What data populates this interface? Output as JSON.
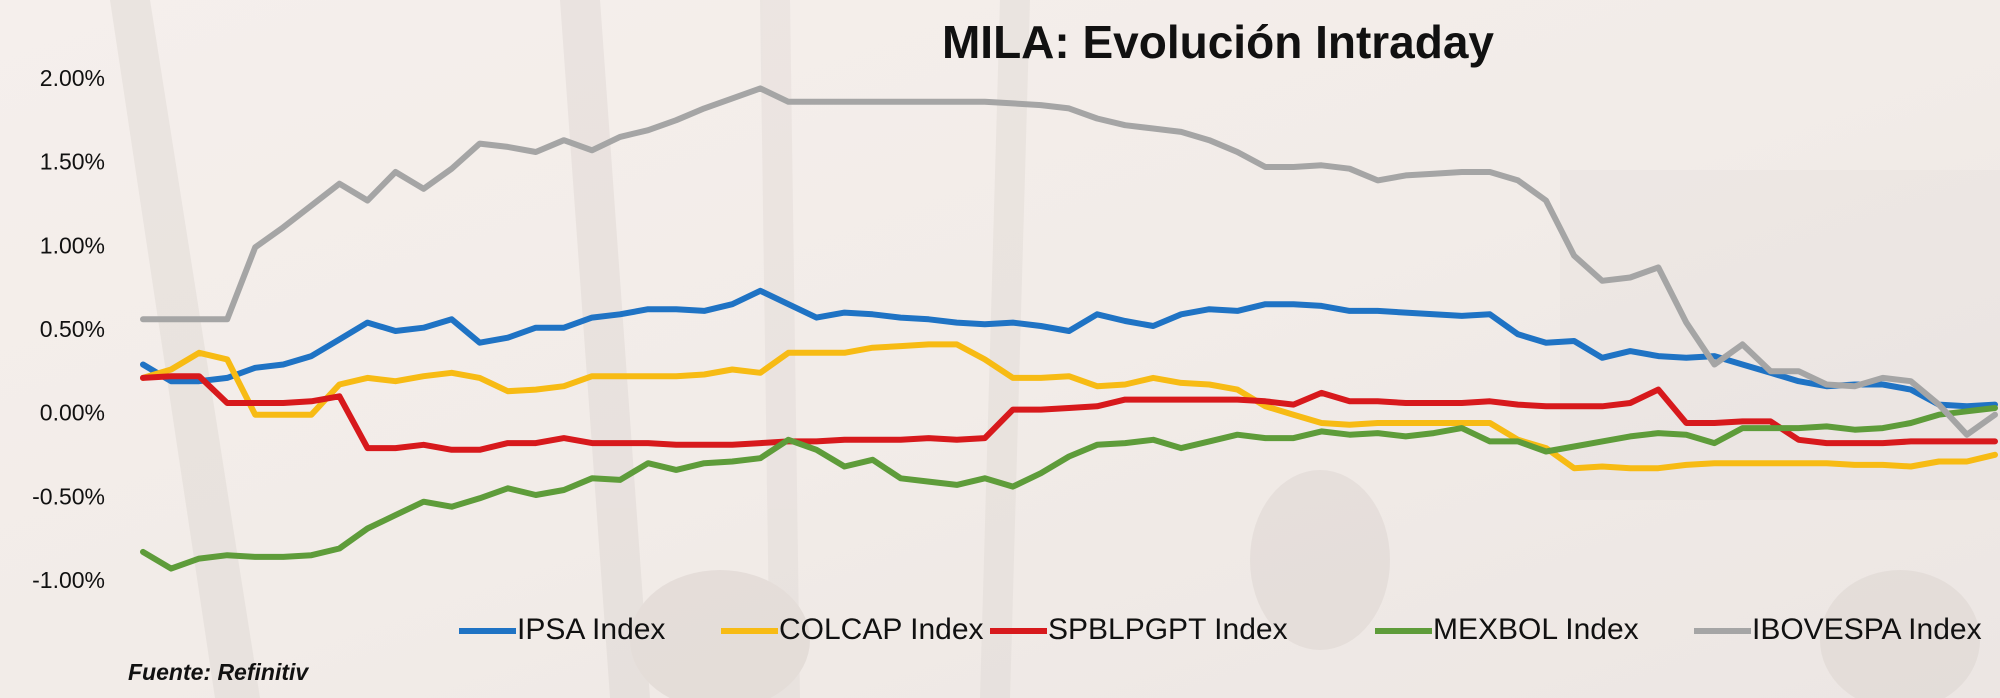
{
  "chart_data": {
    "type": "line",
    "title": "MILA: Evolución Intraday",
    "source": "Fuente: Refinitiv",
    "ylim": [
      -1,
      2
    ],
    "yticks": [
      {
        "value": -1,
        "label": "-1.00%"
      },
      {
        "value": -0.5,
        "label": "-0.50%"
      },
      {
        "value": 0,
        "label": "0.00%"
      },
      {
        "value": 0.5,
        "label": "0.50%"
      },
      {
        "value": 1,
        "label": "1.00%"
      },
      {
        "value": 1.5,
        "label": "1.50%"
      },
      {
        "value": 2,
        "label": "2.00%"
      }
    ],
    "grid": false,
    "series": [
      {
        "name": "IPSA Index",
        "color": "#1f73c4",
        "values": [
          0.3,
          0.2,
          0.2,
          0.22,
          0.28,
          0.3,
          0.35,
          0.45,
          0.55,
          0.5,
          0.52,
          0.57,
          0.43,
          0.46,
          0.52,
          0.52,
          0.58,
          0.6,
          0.63,
          0.63,
          0.62,
          0.66,
          0.74,
          0.66,
          0.58,
          0.61,
          0.6,
          0.58,
          0.57,
          0.55,
          0.54,
          0.55,
          0.53,
          0.5,
          0.6,
          0.56,
          0.53,
          0.6,
          0.63,
          0.62,
          0.66,
          0.66,
          0.65,
          0.62,
          0.62,
          0.61,
          0.6,
          0.59,
          0.6,
          0.48,
          0.43,
          0.44,
          0.34,
          0.38,
          0.35,
          0.34,
          0.35,
          0.3,
          0.25,
          0.2,
          0.17,
          0.18,
          0.18,
          0.15,
          0.06,
          0.05,
          0.06
        ]
      },
      {
        "name": "COLCAP Index",
        "color": "#f7bb14",
        "values": [
          0.22,
          0.27,
          0.37,
          0.33,
          0.0,
          0.0,
          0.0,
          0.18,
          0.22,
          0.2,
          0.23,
          0.25,
          0.22,
          0.14,
          0.15,
          0.17,
          0.23,
          0.23,
          0.23,
          0.23,
          0.24,
          0.27,
          0.25,
          0.37,
          0.37,
          0.37,
          0.4,
          0.41,
          0.42,
          0.42,
          0.33,
          0.22,
          0.22,
          0.23,
          0.17,
          0.18,
          0.22,
          0.19,
          0.18,
          0.15,
          0.05,
          0.0,
          -0.05,
          -0.06,
          -0.05,
          -0.05,
          -0.05,
          -0.05,
          -0.05,
          -0.15,
          -0.2,
          -0.32,
          -0.31,
          -0.32,
          -0.32,
          -0.3,
          -0.29,
          -0.29,
          -0.29,
          -0.29,
          -0.29,
          -0.3,
          -0.3,
          -0.31,
          -0.28,
          -0.28,
          -0.24
        ]
      },
      {
        "name": "SPBLPGPT Index",
        "color": "#d7191c",
        "values": [
          0.22,
          0.23,
          0.23,
          0.07,
          0.07,
          0.07,
          0.08,
          0.11,
          -0.2,
          -0.2,
          -0.18,
          -0.21,
          -0.21,
          -0.17,
          -0.17,
          -0.14,
          -0.17,
          -0.17,
          -0.17,
          -0.18,
          -0.18,
          -0.18,
          -0.17,
          -0.16,
          -0.16,
          -0.15,
          -0.15,
          -0.15,
          -0.14,
          -0.15,
          -0.14,
          0.03,
          0.03,
          0.04,
          0.05,
          0.09,
          0.09,
          0.09,
          0.09,
          0.09,
          0.08,
          0.06,
          0.13,
          0.08,
          0.08,
          0.07,
          0.07,
          0.07,
          0.08,
          0.06,
          0.05,
          0.05,
          0.05,
          0.07,
          0.15,
          -0.05,
          -0.05,
          -0.04,
          -0.04,
          -0.15,
          -0.17,
          -0.17,
          -0.17,
          -0.16,
          -0.16,
          -0.16,
          -0.16
        ]
      },
      {
        "name": "MEXBOL Index",
        "color": "#5e9c3a",
        "values": [
          -0.82,
          -0.92,
          -0.86,
          -0.84,
          -0.85,
          -0.85,
          -0.84,
          -0.8,
          -0.68,
          -0.6,
          -0.52,
          -0.55,
          -0.5,
          -0.44,
          -0.48,
          -0.45,
          -0.38,
          -0.39,
          -0.29,
          -0.33,
          -0.29,
          -0.28,
          -0.26,
          -0.15,
          -0.21,
          -0.31,
          -0.27,
          -0.38,
          -0.4,
          -0.42,
          -0.38,
          -0.43,
          -0.35,
          -0.25,
          -0.18,
          -0.17,
          -0.15,
          -0.2,
          -0.16,
          -0.12,
          -0.14,
          -0.14,
          -0.1,
          -0.12,
          -0.11,
          -0.13,
          -0.11,
          -0.08,
          -0.16,
          -0.16,
          -0.22,
          -0.19,
          -0.16,
          -0.13,
          -0.11,
          -0.12,
          -0.17,
          -0.08,
          -0.08,
          -0.08,
          -0.07,
          -0.09,
          -0.08,
          -0.05,
          0.0,
          0.02,
          0.04
        ]
      },
      {
        "name": "IBOVESPA Index",
        "color": "#a5a5a5",
        "values": [
          0.57,
          0.57,
          0.57,
          0.57,
          1.0,
          1.12,
          1.25,
          1.38,
          1.28,
          1.45,
          1.35,
          1.47,
          1.62,
          1.6,
          1.57,
          1.64,
          1.58,
          1.66,
          1.7,
          1.76,
          1.83,
          1.89,
          1.95,
          1.87,
          1.87,
          1.87,
          1.87,
          1.87,
          1.87,
          1.87,
          1.87,
          1.86,
          1.85,
          1.83,
          1.77,
          1.73,
          1.71,
          1.69,
          1.64,
          1.57,
          1.48,
          1.48,
          1.49,
          1.47,
          1.4,
          1.43,
          1.44,
          1.45,
          1.45,
          1.4,
          1.28,
          0.95,
          0.8,
          0.82,
          0.88,
          0.55,
          0.3,
          0.42,
          0.26,
          0.26,
          0.18,
          0.17,
          0.22,
          0.2,
          0.06,
          -0.12,
          0.0
        ]
      }
    ]
  }
}
